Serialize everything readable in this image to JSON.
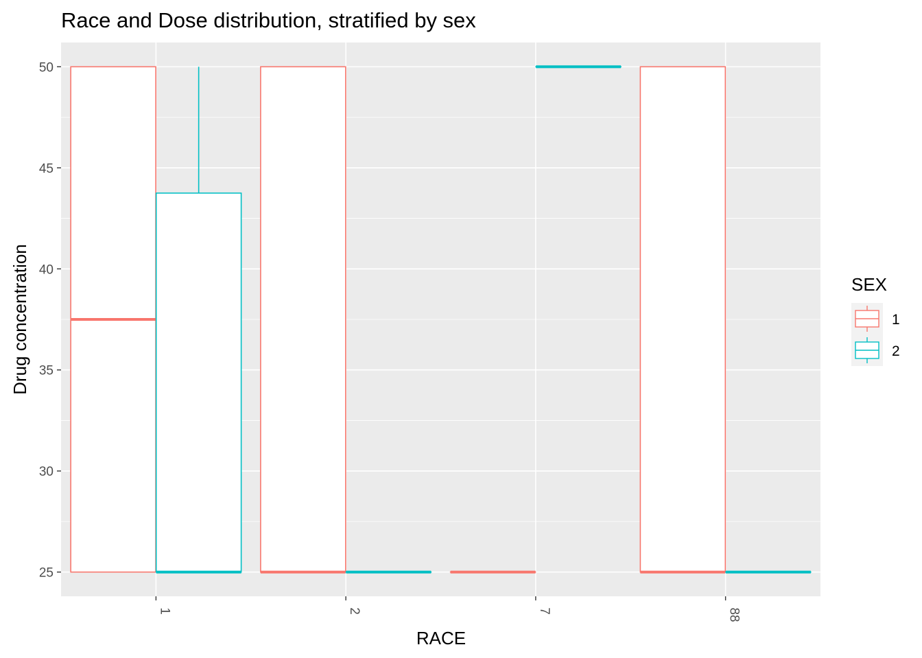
{
  "chart_data": {
    "type": "boxplot",
    "title": "Race and Dose distribution, stratified by sex",
    "xlabel": "RACE",
    "ylabel": "Drug concentration",
    "categories": [
      "1",
      "2",
      "7",
      "88"
    ],
    "ylim": [
      23.8,
      51.2
    ],
    "yticks": [
      25,
      30,
      35,
      40,
      45,
      50
    ],
    "ytick_labels": [
      "25",
      "30",
      "35",
      "40",
      "45",
      "50"
    ],
    "legend": {
      "title": "SEX",
      "position": "right"
    },
    "grid": true,
    "series": [
      {
        "name": "1",
        "color": "#F8766D",
        "boxes": [
          {
            "category": "1",
            "min": 25,
            "q1": 25,
            "median": 37.5,
            "q3": 50,
            "max": 50
          },
          {
            "category": "2",
            "min": 25,
            "q1": 25,
            "median": 25,
            "q3": 50,
            "max": 50
          },
          {
            "category": "7",
            "min": 25,
            "q1": 25,
            "median": 25,
            "q3": 25,
            "max": 25
          },
          {
            "category": "88",
            "min": 25,
            "q1": 25,
            "median": 25,
            "q3": 50,
            "max": 50
          }
        ]
      },
      {
        "name": "2",
        "color": "#00BFC4",
        "boxes": [
          {
            "category": "1",
            "min": 25,
            "q1": 25,
            "median": 25,
            "q3": 43.75,
            "max": 50
          },
          {
            "category": "2",
            "min": 25,
            "q1": 25,
            "median": 25,
            "q3": 25,
            "max": 25
          },
          {
            "category": "7",
            "min": 50,
            "q1": 50,
            "median": 50,
            "q3": 50,
            "max": 50
          },
          {
            "category": "88",
            "min": 25,
            "q1": 25,
            "median": 25,
            "q3": 25,
            "max": 25
          }
        ]
      }
    ],
    "panel_background": "#EBEBEB"
  }
}
